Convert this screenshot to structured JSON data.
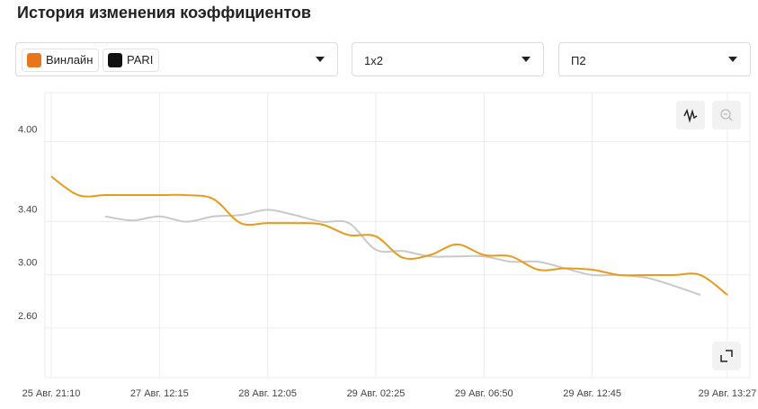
{
  "header": {
    "title": "История изменения коэффициентов"
  },
  "filters": {
    "market": "1х2",
    "outcome": "П2"
  },
  "chart_data": {
    "type": "line",
    "categories": [
      "25 Авг. 21:10",
      null,
      null,
      null,
      "27 Авг. 12:15",
      null,
      null,
      null,
      "28 Авг. 12:05",
      null,
      null,
      null,
      "29 Авг. 02:25",
      null,
      null,
      null,
      "29 Авг. 06:50",
      null,
      null,
      null,
      "29 Авг. 12:45",
      null,
      null,
      null,
      null,
      "29 Авг. 13:27"
    ],
    "series": [
      {
        "name": "Винлайн",
        "color": "#e99a1c",
        "values": [
          3.65,
          3.51,
          3.51,
          3.51,
          3.51,
          3.51,
          3.48,
          3.3,
          3.3,
          3.3,
          3.29,
          3.21,
          3.2,
          3.04,
          3.06,
          3.14,
          3.06,
          3.05,
          2.95,
          2.96,
          2.95,
          2.91,
          2.91,
          2.91,
          2.91,
          2.76
        ]
      },
      {
        "name": "PARI",
        "color": "#c9c9c9",
        "values": [
          null,
          null,
          3.35,
          3.32,
          3.35,
          3.31,
          3.35,
          3.36,
          3.4,
          3.36,
          3.31,
          3.3,
          3.1,
          3.09,
          3.05,
          3.05,
          3.05,
          3.01,
          3.01,
          2.96,
          2.91,
          2.91,
          2.89,
          2.83,
          2.76,
          null
        ]
      }
    ],
    "ylim": [
      2.14,
      4.28
    ],
    "yticks": [
      {
        "value": 2.6,
        "label": "2.60"
      },
      {
        "value": 3,
        "label": "3.00"
      },
      {
        "value": 3.4,
        "label": "3.40"
      },
      {
        "value": 4,
        "label": "4.00"
      }
    ],
    "grid": true
  }
}
